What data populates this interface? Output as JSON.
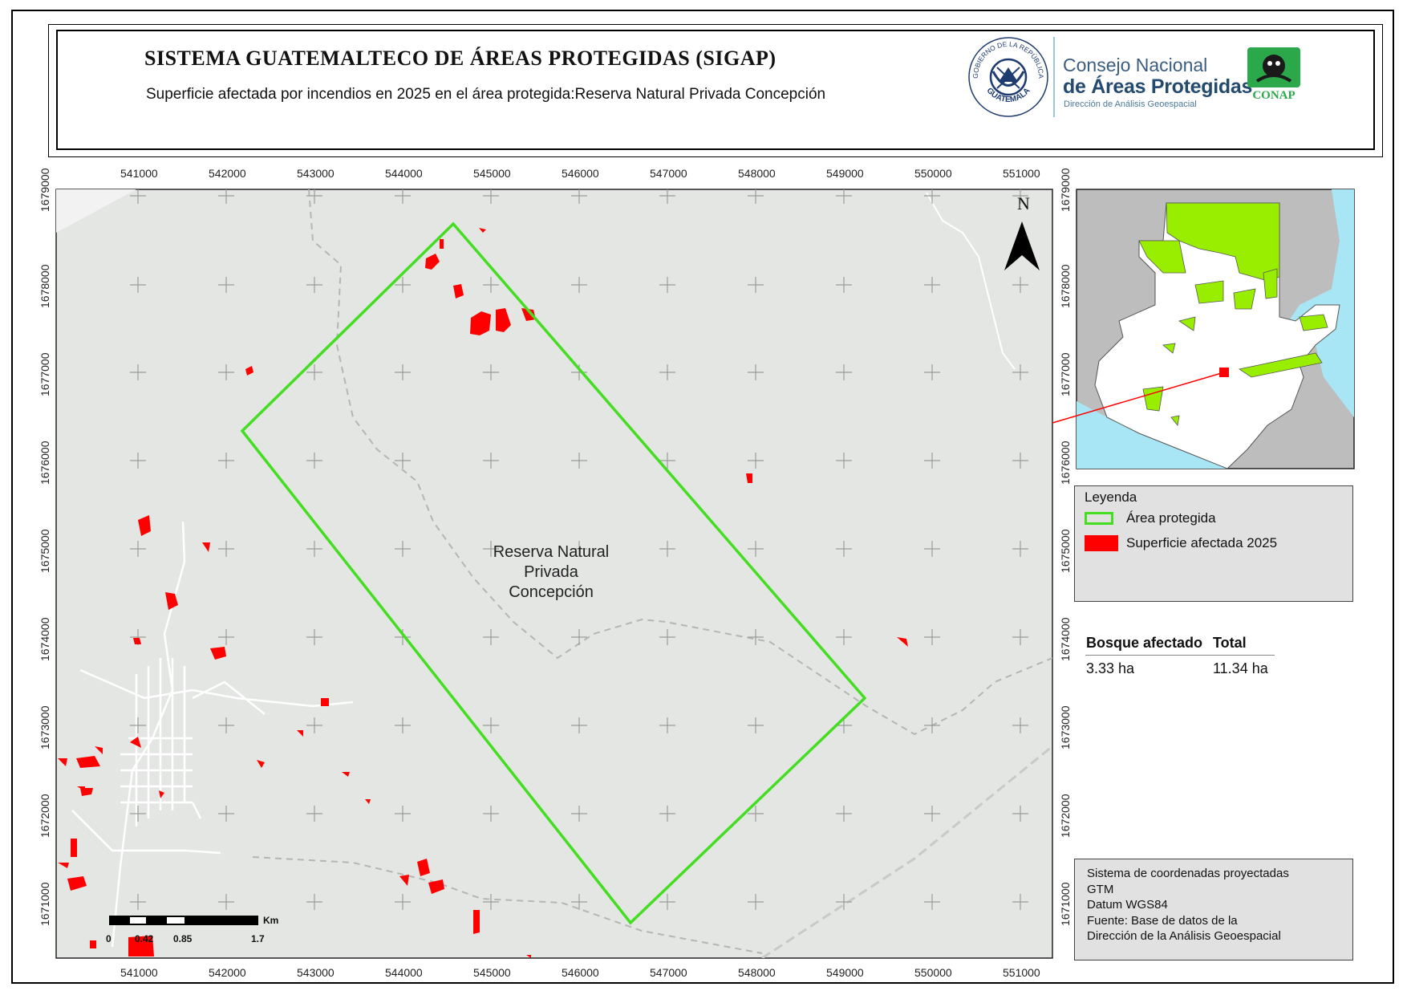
{
  "header": {
    "title": "SISTEMA GUATEMALTECO DE ÁREAS PROTEGIDAS  (SIGAP)",
    "subtitle": "Superficie afectada por incendios en 2025 en el área protegida:Reserva Natural Privada Concepción",
    "seal_text_top": "GOBIERNO DE LA REPÚBLICA",
    "seal_text_bottom": "GUATEMALA",
    "conap_line1": "Consejo Nacional",
    "conap_line2": "de Áreas Protegidas",
    "conap_line3": "Dirección de Análisis Geoespacial",
    "conap_logo_text": "CONAP"
  },
  "map": {
    "x_ticks": [
      "541000",
      "542000",
      "543000",
      "544000",
      "545000",
      "546000",
      "547000",
      "548000",
      "549000",
      "550000",
      "551000"
    ],
    "y_ticks": [
      "1679000",
      "1678000",
      "1677000",
      "1676000",
      "1675000",
      "1674000",
      "1673000",
      "1672000",
      "1671000"
    ],
    "area_label": [
      "Reserva Natural",
      "Privada",
      "Concepción"
    ],
    "north_label": "N",
    "colors": {
      "background": "#e4e6e4",
      "protected_area": "#44dd22",
      "burned": "#ff0000",
      "inset_protected": "#99ee00",
      "water": "#a9e6f5"
    }
  },
  "scale_bar": {
    "labels": [
      "0",
      "0.42",
      "0.85",
      "1.7"
    ],
    "unit": "Km"
  },
  "legend": {
    "title": "Leyenda",
    "items": [
      {
        "label": "Área protegida",
        "symbol": "green-outline"
      },
      {
        "label": "Superficie afectada 2025",
        "symbol": "red-fill"
      }
    ]
  },
  "summary_table": {
    "headers": [
      "Bosque afectado",
      "Total"
    ],
    "values": [
      "3.33 ha",
      "11.34 ha"
    ]
  },
  "coordinate_info": [
    "Sistema de coordenadas proyectadas",
    "GTM",
    "Datum WGS84",
    "Fuente: Base de datos de la",
    "Dirección de la Análisis Geoespacial"
  ]
}
